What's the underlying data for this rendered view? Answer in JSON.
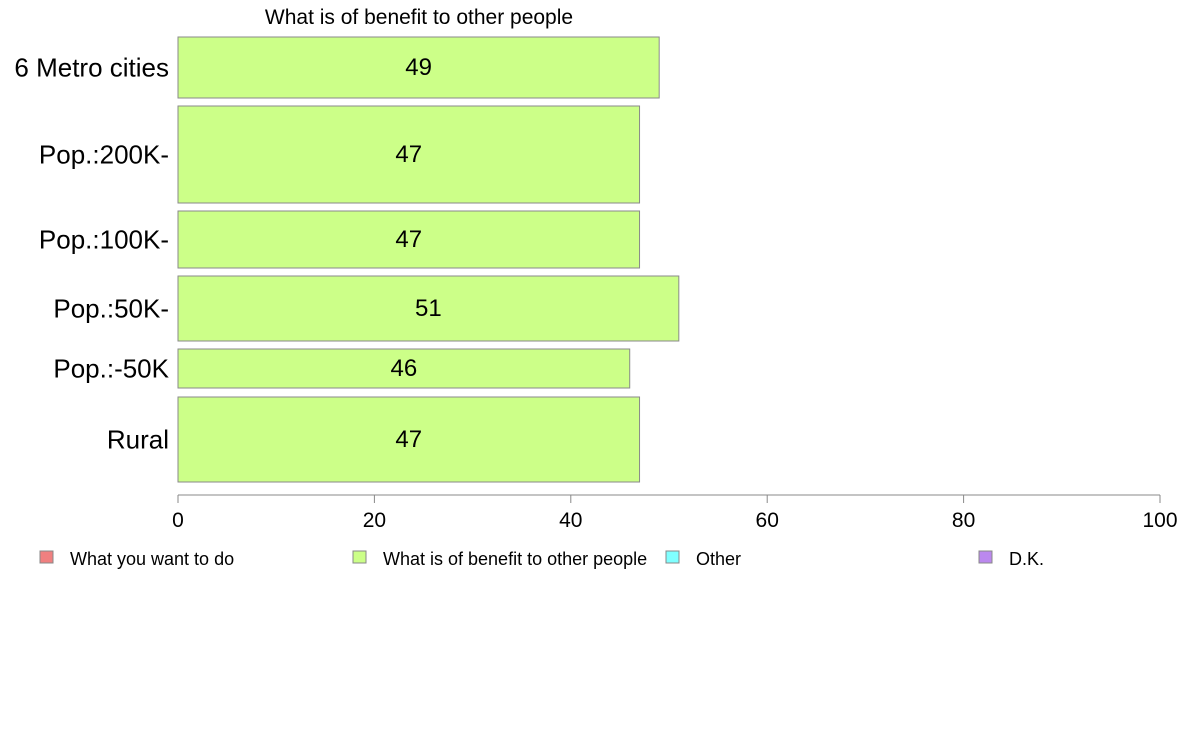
{
  "chart_data": {
    "type": "bar",
    "orientation": "horizontal",
    "title": "What is of benefit to other people",
    "categories": [
      "6 Metro cities",
      "Pop.:200K-",
      "Pop.:100K-",
      "Pop.:50K-",
      "Pop.:-50K",
      "Rural"
    ],
    "series": [
      {
        "name": "What is of benefit to other people",
        "values": [
          49,
          47,
          47,
          51,
          46,
          47
        ],
        "color": "#ccff88"
      }
    ],
    "xlim": [
      0,
      100
    ],
    "xticks": [
      "0",
      "20",
      "40",
      "60",
      "80",
      "100"
    ],
    "grid": false,
    "legend_position": "bottom",
    "legend": [
      {
        "label": "What you want to do",
        "color": "#f08080"
      },
      {
        "label": "What is of benefit to other people",
        "color": "#ccff88"
      },
      {
        "label": "Other",
        "color": "#80ffff"
      },
      {
        "label": "D.K.",
        "color": "#bb88ee"
      }
    ]
  }
}
